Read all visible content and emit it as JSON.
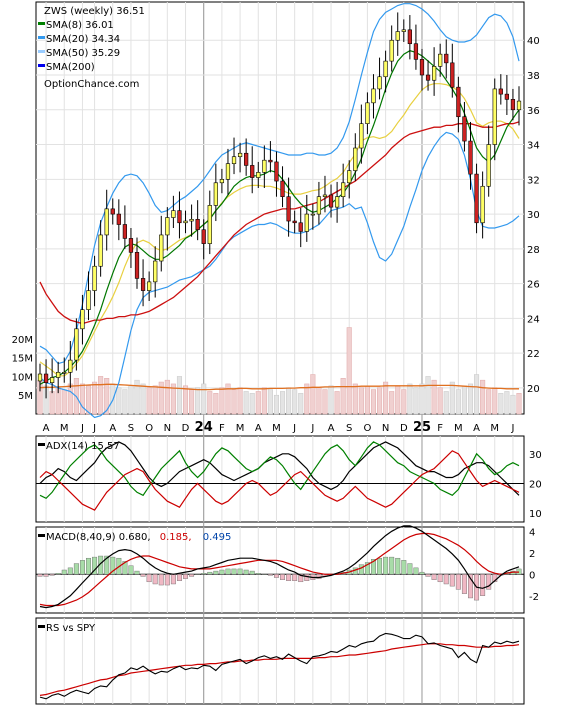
{
  "chart_data": [
    {
      "type": "candlestick",
      "title": "ZWS (weekly) 36.51",
      "watermark": "OptionChance.com",
      "legend": [
        {
          "label": "SMA(8) 36.01",
          "color": "#008000"
        },
        {
          "label": "SMA(20) 34.34",
          "color": "#3399ee"
        },
        {
          "label": "SMA(50) 35.29",
          "color": "#99ccff"
        },
        {
          "label": "SMA(200)",
          "color": "#0000ee"
        }
      ],
      "price_axis": {
        "ylim": [
          18.5,
          42.2
        ],
        "ticks": [
          20,
          22,
          24,
          26,
          28,
          30,
          32,
          34,
          36,
          38,
          40
        ]
      },
      "volume_axis": {
        "ylim": [
          0,
          25
        ],
        "ticks": [
          5,
          10,
          15,
          20
        ],
        "tick_labels": [
          "5M",
          "10M",
          "15M",
          "20M"
        ]
      },
      "x_labels": [
        "A",
        "M",
        "J",
        "J",
        "A",
        "S",
        "O",
        "N",
        "D",
        "24",
        "F",
        "M",
        "A",
        "M",
        "J",
        "J",
        "A",
        "S",
        "O",
        "N",
        "D",
        "25",
        "F",
        "M",
        "A",
        "M",
        "J"
      ],
      "close": [
        20.8,
        20.3,
        20.6,
        20.9,
        20.9,
        21.6,
        23.4,
        24.5,
        25.6,
        27.0,
        28.8,
        30.3,
        30.0,
        29.4,
        28.6,
        27.8,
        26.3,
        25.6,
        26.1,
        27.3,
        28.8,
        29.8,
        30.2,
        29.5,
        29.6,
        29.7,
        29.1,
        28.3,
        30.5,
        31.8,
        32.0,
        32.9,
        33.3,
        33.5,
        32.8,
        32.1,
        32.4,
        33.1,
        33.0,
        31.9,
        31.0,
        29.6,
        29.5,
        29.0,
        30.0,
        30.0,
        31.0,
        31.1,
        30.4,
        31.0,
        31.8,
        32.5,
        33.8,
        35.2,
        36.4,
        37.2,
        37.9,
        38.8,
        40.0,
        40.5,
        40.6,
        39.8,
        38.9,
        38.0,
        37.7,
        38.5,
        39.2,
        38.7,
        37.3,
        35.6,
        34.2,
        32.3,
        29.5,
        31.6,
        34.0,
        37.2,
        36.9,
        36.6,
        36.0,
        36.5
      ],
      "sma8": [
        20.2,
        20.4,
        20.6,
        20.7,
        20.9,
        21.2,
        21.6,
        22.1,
        22.8,
        23.6,
        24.5,
        25.6,
        26.6,
        27.5,
        28.1,
        28.3,
        28.2,
        27.9,
        27.6,
        27.4,
        27.4,
        27.6,
        27.9,
        28.2,
        28.6,
        28.8,
        29.1,
        29.4,
        29.7,
        30.2,
        30.6,
        31.1,
        31.6,
        31.9,
        32.1,
        32.2,
        32.2,
        32.3,
        32.5,
        32.4,
        32.0,
        31.5,
        31.0,
        30.6,
        30.3,
        30.1,
        30.2,
        30.4,
        30.6,
        30.9,
        31.2,
        31.7,
        32.4,
        33.2,
        34.2,
        35.1,
        36.1,
        37.2,
        38.1,
        38.8,
        39.2,
        39.4,
        39.3,
        39.1,
        38.8,
        38.5,
        38.2,
        37.7,
        37.2,
        36.6,
        35.8,
        34.8,
        33.8,
        33.3,
        33.0,
        33.4,
        34.2,
        35.0,
        35.5,
        36.0
      ],
      "sma50": [
        26.1,
        25.4,
        24.9,
        24.4,
        24.1,
        23.9,
        23.8,
        23.7,
        23.8,
        23.9,
        23.9,
        24.0,
        24.0,
        24.1,
        24.1,
        24.2,
        24.2,
        24.3,
        24.4,
        24.6,
        24.8,
        25.0,
        25.2,
        25.5,
        25.8,
        26.1,
        26.4,
        26.8,
        27.2,
        27.6,
        28.0,
        28.4,
        28.8,
        29.1,
        29.4,
        29.6,
        29.8,
        30.0,
        30.1,
        30.2,
        30.3,
        30.3,
        30.3,
        30.4,
        30.5,
        30.6,
        30.7,
        30.9,
        31.1,
        31.3,
        31.5,
        31.7,
        31.9,
        32.2,
        32.5,
        32.8,
        33.1,
        33.4,
        33.8,
        34.1,
        34.4,
        34.6,
        34.7,
        34.8,
        34.9,
        35.0,
        35.0,
        35.1,
        35.1,
        35.2,
        35.2,
        35.2,
        35.1,
        35.0,
        35.0,
        35.0,
        35.1,
        35.2,
        35.2,
        35.3
      ],
      "bb_upper": [
        22.4,
        22.2,
        21.8,
        21.4,
        21.5,
        22.1,
        23.3,
        24.8,
        26.5,
        28.2,
        29.5,
        30.4,
        31.2,
        31.8,
        32.2,
        32.3,
        32.2,
        31.8,
        31.2,
        30.5,
        30.1,
        30.2,
        30.5,
        30.8,
        31.0,
        31.3,
        31.6,
        32.0,
        32.5,
        33.0,
        33.4,
        33.6,
        33.8,
        34.0,
        34.1,
        34.0,
        33.9,
        33.8,
        33.7,
        33.6,
        33.5,
        33.4,
        33.4,
        33.4,
        33.5,
        33.5,
        33.4,
        33.4,
        33.5,
        33.8,
        34.4,
        35.3,
        36.6,
        38.0,
        39.3,
        40.5,
        41.2,
        41.6,
        41.8,
        42.0,
        42.1,
        42.1,
        42.0,
        41.8,
        41.5,
        41.1,
        40.6,
        40.2,
        40.0,
        39.9,
        39.9,
        40.0,
        40.3,
        40.8,
        41.3,
        41.5,
        41.4,
        41.0,
        40.2,
        38.8
      ],
      "bb_lower": [
        20.6,
        20.3,
        20.2,
        20.0,
        19.9,
        19.8,
        19.5,
        18.9,
        18.6,
        18.3,
        18.4,
        18.7,
        19.3,
        20.3,
        21.8,
        23.3,
        24.5,
        25.2,
        25.5,
        25.6,
        25.7,
        25.8,
        26.0,
        26.2,
        26.3,
        26.4,
        26.6,
        26.8,
        27.0,
        27.4,
        27.9,
        28.4,
        28.7,
        28.9,
        29.1,
        29.3,
        29.4,
        29.4,
        29.5,
        29.4,
        29.2,
        29.0,
        28.9,
        28.9,
        29.0,
        29.2,
        29.4,
        29.8,
        30.2,
        30.3,
        30.4,
        30.6,
        30.3,
        30.4,
        29.5,
        28.4,
        27.5,
        27.3,
        27.7,
        28.5,
        29.3,
        30.4,
        31.4,
        32.5,
        33.3,
        33.9,
        34.4,
        34.7,
        34.6,
        34.3,
        33.4,
        32.0,
        30.2,
        29.3,
        29.2,
        29.2,
        29.3,
        29.4,
        29.6,
        29.9
      ],
      "volume": [
        9.0,
        7.5,
        6.0,
        7.0,
        6.5,
        8.0,
        9.5,
        8.0,
        7.5,
        8.5,
        10.0,
        9.5,
        8.0,
        7.0,
        6.5,
        7.5,
        9.0,
        8.0,
        7.0,
        7.5,
        8.5,
        9.0,
        8.0,
        10.0,
        7.5,
        6.5,
        7.0,
        8.0,
        6.0,
        5.5,
        7.0,
        8.0,
        6.5,
        7.0,
        6.0,
        5.5,
        6.0,
        7.0,
        6.5,
        5.0,
        6.0,
        7.0,
        6.5,
        5.5,
        8.0,
        10.5,
        7.0,
        6.5,
        7.5,
        6.0,
        9.5,
        23.0,
        8.0,
        7.0,
        7.5,
        6.5,
        7.0,
        8.5,
        6.0,
        7.5,
        6.5,
        8.0,
        7.0,
        8.0,
        10.0,
        9.0,
        7.0,
        6.0,
        8.5,
        6.5,
        7.5,
        8.0,
        10.5,
        9.0,
        6.5,
        7.0,
        5.5,
        6.0,
        5.0,
        5.5
      ],
      "volume_avg": [
        7.0,
        7.1,
        7.1,
        7.2,
        7.3,
        7.4,
        7.5,
        7.6,
        7.7,
        7.8,
        7.8,
        7.9,
        7.9,
        7.8,
        7.7,
        7.6,
        7.5,
        7.4,
        7.3,
        7.2,
        7.1,
        7.0,
        6.9,
        6.8,
        6.7,
        6.6,
        6.5,
        6.5,
        6.5,
        6.6,
        6.6,
        6.7,
        6.7,
        6.8,
        6.8,
        6.7,
        6.7,
        6.7,
        6.8,
        6.8,
        6.8,
        6.9,
        6.9,
        7.0,
        7.0,
        7.1,
        7.1,
        7.2,
        7.2,
        7.3,
        7.3,
        7.3,
        7.3,
        7.4,
        7.4,
        7.4,
        7.4,
        7.5,
        7.5,
        7.5,
        7.5,
        7.5,
        7.5,
        7.5,
        7.6,
        7.6,
        7.6,
        7.6,
        7.6,
        7.5,
        7.4,
        7.3,
        7.2,
        7.0,
        6.9,
        6.8,
        6.8,
        6.7,
        6.7,
        6.7
      ]
    },
    {
      "type": "line",
      "title": "ADX(14) 15.57",
      "ylim": [
        7,
        36
      ],
      "ticks": [
        10,
        20,
        30
      ],
      "reference_line": 20,
      "series": [
        {
          "color": "#000000",
          "values": [
            20,
            22,
            23,
            25,
            24,
            22,
            21,
            23,
            25,
            27,
            30,
            32,
            33,
            34,
            33,
            31,
            28,
            25,
            22,
            20,
            19,
            20,
            22,
            24,
            25,
            26,
            27,
            28,
            27,
            25,
            23,
            22,
            21,
            22,
            23,
            24,
            25,
            27,
            28,
            29,
            30,
            30,
            29,
            27,
            25,
            22,
            20,
            19,
            18,
            19,
            21,
            24,
            26,
            28,
            30,
            32,
            33,
            34,
            33,
            32,
            30,
            28,
            26,
            25,
            24,
            24,
            23,
            22,
            22,
            23,
            25,
            26,
            27,
            27,
            26,
            24,
            22,
            20,
            18,
            16
          ]
        },
        {
          "color": "#008000",
          "values": [
            16,
            15,
            17,
            20,
            23,
            26,
            28,
            30,
            32,
            33,
            31,
            28,
            26,
            24,
            22,
            19,
            17,
            16,
            19,
            22,
            25,
            27,
            29,
            31,
            27,
            24,
            22,
            24,
            27,
            30,
            32,
            31,
            29,
            27,
            25,
            24,
            25,
            27,
            29,
            28,
            26,
            23,
            20,
            18,
            21,
            24,
            27,
            30,
            32,
            33,
            31,
            28,
            26,
            29,
            32,
            34,
            33,
            31,
            29,
            27,
            26,
            24,
            23,
            22,
            21,
            20,
            18,
            17,
            16,
            18,
            22,
            26,
            30,
            28,
            25,
            23,
            24,
            26,
            27,
            26
          ]
        },
        {
          "color": "#cc0000",
          "values": [
            22,
            24,
            23,
            21,
            19,
            17,
            15,
            13,
            12,
            11,
            14,
            17,
            19,
            21,
            23,
            24,
            25,
            24,
            21,
            18,
            16,
            14,
            13,
            12,
            15,
            18,
            20,
            18,
            16,
            14,
            13,
            14,
            16,
            18,
            20,
            21,
            20,
            18,
            16,
            17,
            19,
            21,
            23,
            24,
            22,
            20,
            18,
            16,
            15,
            14,
            15,
            17,
            19,
            17,
            15,
            14,
            13,
            12,
            13,
            15,
            17,
            19,
            21,
            23,
            24,
            25,
            27,
            29,
            31,
            30,
            27,
            24,
            21,
            19,
            20,
            21,
            20,
            19,
            18,
            17
          ]
        }
      ]
    },
    {
      "type": "line",
      "title": "MACD(8,40,9) 0.680,",
      "signal_label": "0.185,",
      "histogram_label": "0.495",
      "signal_color": "#cc0000",
      "histogram_color": "#0044aa",
      "ylim": [
        -3.6,
        4.4
      ],
      "ticks": [
        -2,
        0,
        2,
        4
      ],
      "tick_labels": [
        "-2",
        "0",
        "2",
        "4"
      ],
      "macd": [
        -3.0,
        -3.1,
        -3.0,
        -2.8,
        -2.4,
        -2.0,
        -1.4,
        -0.8,
        -0.2,
        0.4,
        1.0,
        1.5,
        1.9,
        2.2,
        2.3,
        2.2,
        1.9,
        1.5,
        1.0,
        0.6,
        0.3,
        0.1,
        0.0,
        0.1,
        0.2,
        0.3,
        0.5,
        0.6,
        0.7,
        0.9,
        1.1,
        1.3,
        1.4,
        1.5,
        1.5,
        1.5,
        1.4,
        1.3,
        1.2,
        1.0,
        0.7,
        0.4,
        0.2,
        -0.1,
        -0.2,
        -0.3,
        -0.3,
        -0.2,
        -0.1,
        0.1,
        0.3,
        0.6,
        1.0,
        1.5,
        2.0,
        2.6,
        3.1,
        3.6,
        4.0,
        4.3,
        4.5,
        4.5,
        4.3,
        4.0,
        3.6,
        3.2,
        2.8,
        2.4,
        1.9,
        1.3,
        0.5,
        -0.4,
        -1.2,
        -1.3,
        -1.1,
        -0.6,
        -0.1,
        0.3,
        0.5,
        0.7
      ],
      "signal": [
        -2.8,
        -2.9,
        -2.9,
        -2.9,
        -2.8,
        -2.6,
        -2.4,
        -2.1,
        -1.7,
        -1.2,
        -0.7,
        -0.2,
        0.3,
        0.7,
        1.1,
        1.4,
        1.6,
        1.7,
        1.7,
        1.5,
        1.3,
        1.1,
        0.9,
        0.7,
        0.6,
        0.5,
        0.5,
        0.5,
        0.5,
        0.6,
        0.7,
        0.8,
        0.9,
        1.0,
        1.1,
        1.2,
        1.3,
        1.3,
        1.3,
        1.3,
        1.2,
        1.0,
        0.8,
        0.6,
        0.4,
        0.2,
        0.1,
        0.0,
        0.0,
        0.0,
        0.1,
        0.2,
        0.4,
        0.6,
        0.9,
        1.2,
        1.6,
        2.0,
        2.4,
        2.8,
        3.2,
        3.5,
        3.7,
        3.8,
        3.8,
        3.7,
        3.5,
        3.3,
        3.0,
        2.7,
        2.3,
        1.8,
        1.2,
        0.7,
        0.3,
        0.1,
        0.0,
        0.1,
        0.2,
        0.2
      ]
    },
    {
      "type": "line",
      "title": "RS vs SPY",
      "ylim": [
        0,
        100
      ],
      "rs": [
        8,
        6,
        10,
        12,
        9,
        13,
        16,
        14,
        12,
        18,
        21,
        20,
        28,
        34,
        36,
        42,
        40,
        44,
        39,
        35,
        38,
        37,
        41,
        44,
        40,
        42,
        41,
        45,
        44,
        39,
        46,
        48,
        50,
        52,
        47,
        50,
        54,
        56,
        53,
        55,
        52,
        58,
        54,
        50,
        47,
        55,
        56,
        58,
        61,
        60,
        64,
        68,
        66,
        70,
        72,
        73,
        79,
        82,
        81,
        79,
        76,
        76,
        80,
        78,
        70,
        71,
        68,
        66,
        64,
        54,
        60,
        52,
        48,
        68,
        66,
        72,
        70,
        73,
        71,
        73
      ],
      "rs_avg": [
        10,
        11,
        13,
        15,
        16,
        18,
        20,
        22,
        24,
        26,
        28,
        29,
        31,
        33,
        34,
        36,
        37,
        38,
        39,
        40,
        41,
        42,
        43,
        44,
        45,
        45,
        46,
        46,
        47,
        47,
        48,
        49,
        49,
        50,
        50,
        51,
        51,
        52,
        52,
        52,
        53,
        53,
        53,
        53,
        53,
        53,
        54,
        54,
        55,
        55,
        56,
        57,
        57,
        58,
        59,
        60,
        61,
        62,
        64,
        65,
        66,
        67,
        68,
        69,
        70,
        70,
        70,
        69,
        69,
        68,
        68,
        67,
        66,
        66,
        66,
        67,
        67,
        68,
        68,
        69
      ]
    }
  ]
}
